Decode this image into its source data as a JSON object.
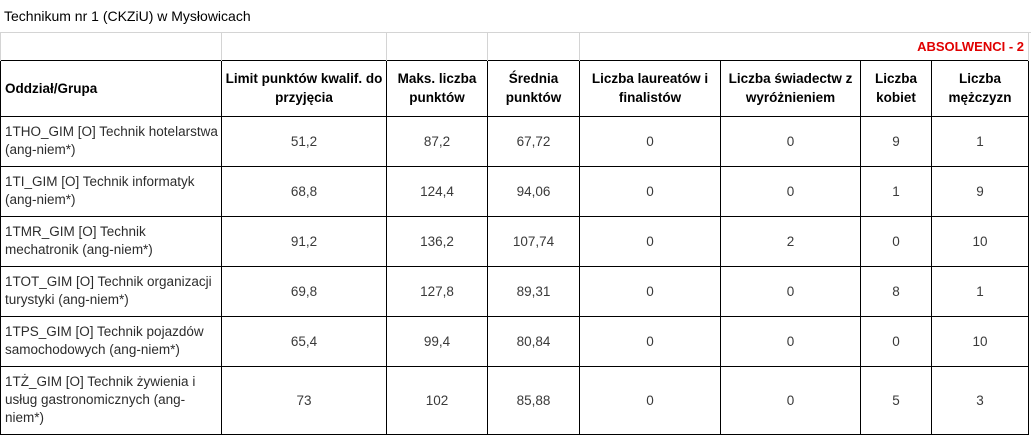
{
  "sheet": {
    "title": "Technikum nr 1 (CKZiU) w Mysłowicach",
    "banner": "ABSOLWENCI - 2"
  },
  "colors": {
    "banner": "#e00000",
    "grid_light": "#d4d4d4",
    "grid_dark": "#000000"
  },
  "table": {
    "headers": [
      "Oddział/Grupa",
      "Limit punktów kwalif. do przyjęcia",
      "Maks. liczba punktów",
      "Średnia punktów",
      "Liczba laureatów i finalistów",
      "Liczba świadectw z wyróżnieniem",
      "Liczba kobiet",
      "Liczba mężczyzn"
    ],
    "rows": [
      [
        "1THO_GIM [O] Technik hotelarstwa (ang-niem*)",
        "51,2",
        "87,2",
        "67,72",
        "0",
        "0",
        "9",
        "1"
      ],
      [
        "1TI_GIM [O] Technik informatyk (ang-niem*)",
        "68,8",
        "124,4",
        "94,06",
        "0",
        "0",
        "1",
        "9"
      ],
      [
        "1TMR_GIM [O] Technik mechatronik (ang-niem*)",
        "91,2",
        "136,2",
        "107,74",
        "0",
        "2",
        "0",
        "10"
      ],
      [
        "1TOT_GIM [O] Technik organizacji turystyki (ang-niem*)",
        "69,8",
        "127,8",
        "89,31",
        "0",
        "0",
        "8",
        "1"
      ],
      [
        "1TPS_GIM [O] Technik pojazdów samochodowych (ang-niem*)",
        "65,4",
        "99,4",
        "80,84",
        "0",
        "0",
        "0",
        "10"
      ],
      [
        "1TŻ_GIM [O] Technik żywienia i usług gastronomicznych (ang-niem*)",
        "73",
        "102",
        "85,88",
        "0",
        "0",
        "5",
        "3"
      ]
    ]
  }
}
